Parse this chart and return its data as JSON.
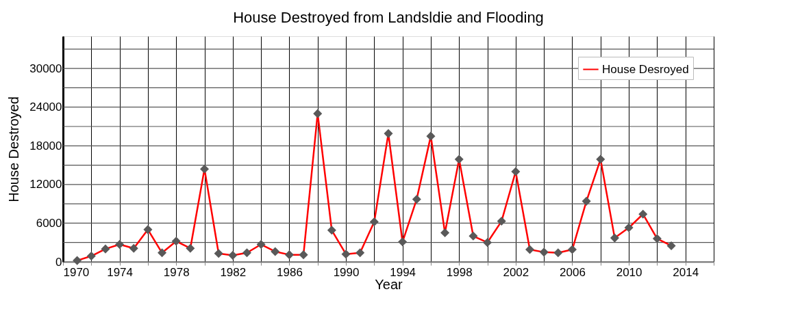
{
  "chart_data": {
    "type": "line",
    "title": "House Destroyed from Landsldie and Flooding",
    "xlabel": "Year",
    "ylabel": "House Destroyed",
    "x": [
      1971,
      1972,
      1973,
      1974,
      1975,
      1976,
      1977,
      1978,
      1979,
      1980,
      1981,
      1982,
      1983,
      1984,
      1985,
      1986,
      1987,
      1988,
      1989,
      1990,
      1991,
      1992,
      1993,
      1994,
      1995,
      1996,
      1997,
      1998,
      1999,
      2000,
      2001,
      2002,
      2003,
      2004,
      2005,
      2006,
      2007,
      2008,
      2009,
      2010,
      2011,
      2012,
      2013
    ],
    "series": [
      {
        "name": "House Desroyed",
        "color": "#ff0000",
        "values": [
          200,
          900,
          2000,
          2700,
          2100,
          5000,
          1400,
          3200,
          2100,
          14400,
          1300,
          1000,
          1400,
          2700,
          1600,
          1100,
          1100,
          23000,
          4900,
          1200,
          1400,
          6200,
          19900,
          3100,
          9700,
          19500,
          4500,
          15900,
          4000,
          3000,
          6300,
          14000,
          1900,
          1500,
          1400,
          1900,
          9400,
          15900,
          3700,
          5300,
          7400,
          3600,
          2500
        ]
      }
    ],
    "xlim": [
      1970,
      2016
    ],
    "xticks": [
      1970,
      {
        "value": 1972,
        "label": null
      },
      1974,
      {
        "value": 1976,
        "label": null
      },
      1978,
      {
        "value": 1980,
        "label": null
      },
      1982,
      {
        "value": 1984,
        "label": null
      },
      1986,
      {
        "value": 1988,
        "label": null
      },
      1990,
      {
        "value": 1992,
        "label": null
      },
      1994,
      {
        "value": 1996,
        "label": null
      },
      1998,
      {
        "value": 2000,
        "label": null
      },
      2002,
      {
        "value": 2004,
        "label": null
      },
      2006,
      {
        "value": 2008,
        "label": null
      },
      2010,
      {
        "value": 2012,
        "label": null
      },
      2014,
      {
        "value": 2016,
        "label": null
      }
    ],
    "ylim": [
      0,
      35000
    ],
    "yticks": [
      0,
      {
        "value": 3000,
        "label": null
      },
      6000,
      {
        "value": 9000,
        "label": null
      },
      12000,
      {
        "value": 15000,
        "label": null
      },
      18000,
      {
        "value": 21000,
        "label": null
      },
      24000,
      {
        "value": 27000,
        "label": null
      },
      30000,
      {
        "value": 33000,
        "label": null
      }
    ],
    "grid": true,
    "legend": "top right",
    "marker": "diamond",
    "line_style": "solid"
  }
}
